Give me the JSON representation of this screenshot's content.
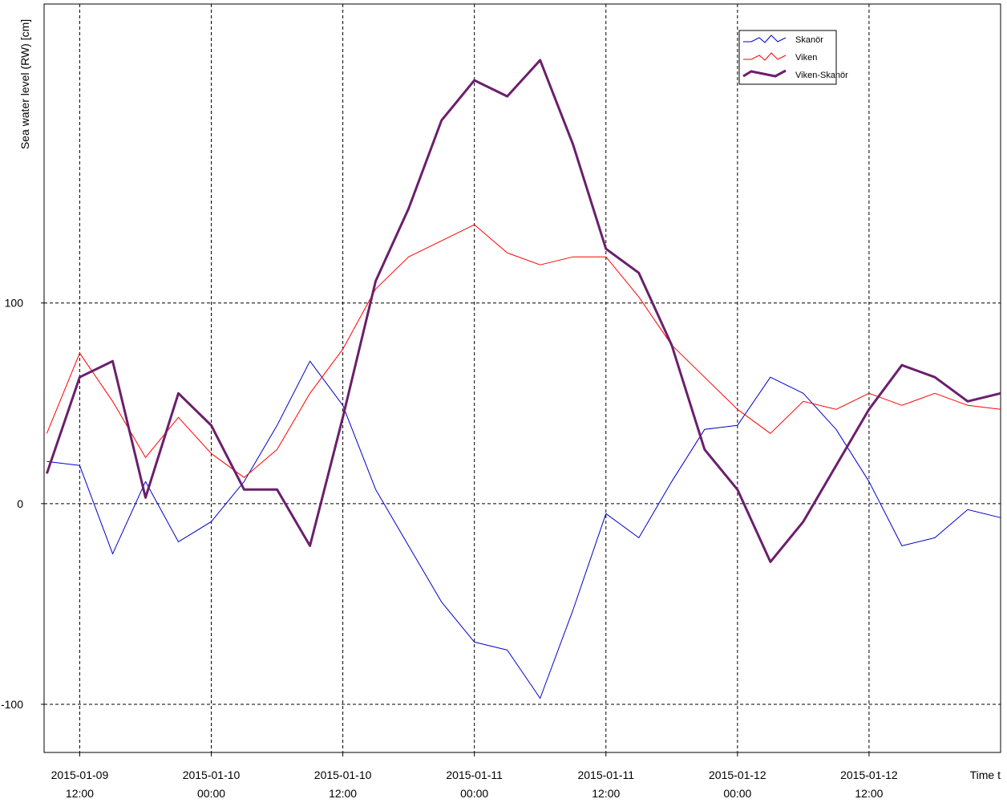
{
  "chart_data": {
    "type": "line",
    "y_label": "Sea water level (RW) [cm]",
    "x_label": "Time t",
    "x": [
      "2015-01-09 09:00",
      "2015-01-09 12:00",
      "2015-01-09 15:00",
      "2015-01-09 18:00",
      "2015-01-09 21:00",
      "2015-01-10 00:00",
      "2015-01-10 03:00",
      "2015-01-10 06:00",
      "2015-01-10 09:00",
      "2015-01-10 12:00",
      "2015-01-10 15:00",
      "2015-01-10 18:00",
      "2015-01-10 21:00",
      "2015-01-11 00:00",
      "2015-01-11 03:00",
      "2015-01-11 06:00",
      "2015-01-11 09:00",
      "2015-01-11 12:00",
      "2015-01-11 15:00",
      "2015-01-11 18:00",
      "2015-01-11 21:00",
      "2015-01-12 00:00",
      "2015-01-12 03:00",
      "2015-01-12 06:00",
      "2015-01-12 09:00",
      "2015-01-12 12:00",
      "2015-01-12 15:00",
      "2015-01-12 18:00",
      "2015-01-12 21:00",
      "2015-01-13 00:00"
    ],
    "xlim": [
      "2015-01-09 08:45",
      "2015-01-13 00:00"
    ],
    "xticks": [
      "2015-01-09 12:00",
      "2015-01-10 00:00",
      "2015-01-10 12:00",
      "2015-01-11 00:00",
      "2015-01-11 12:00",
      "2015-01-12 00:00",
      "2015-01-12 12:00"
    ],
    "ylim": [
      -124,
      249
    ],
    "yticks": [
      -100,
      0,
      100
    ],
    "grid": true,
    "legend": "upper right",
    "series": [
      {
        "name": "Skanör",
        "color": "#0000cc",
        "values": [
          21,
          19,
          -25,
          11,
          -19,
          -9,
          11,
          39,
          71,
          49,
          7,
          -21,
          -49,
          -69,
          -73,
          -97,
          -53,
          -5,
          -17,
          11,
          37,
          39,
          63,
          55,
          37,
          11,
          -21,
          -17,
          -3,
          -7
        ]
      },
      {
        "name": "Viken",
        "color": "#ff0000",
        "values": [
          35,
          75,
          51,
          23,
          43,
          25,
          13,
          27,
          55,
          77,
          107,
          123,
          131,
          139,
          125,
          119,
          123,
          123,
          103,
          79,
          63,
          47,
          35,
          51,
          47,
          55,
          49,
          55,
          49,
          47
        ]
      },
      {
        "name": "Viken-Skanör",
        "color": "#6b1f6b",
        "values": [
          15,
          63,
          71,
          3,
          55,
          39,
          7,
          7,
          -21,
          43,
          111,
          147,
          191,
          211,
          203,
          221,
          179,
          127,
          115,
          79,
          27,
          7,
          -29,
          -9,
          19,
          47,
          69,
          63,
          51,
          55
        ]
      }
    ]
  }
}
